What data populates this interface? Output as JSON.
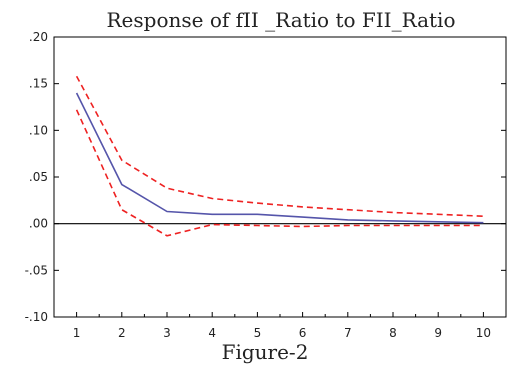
{
  "chart_data": {
    "type": "line",
    "title": "Response of fII _Ratio to FII_Ratio",
    "caption": "Figure-2",
    "xlabel": "",
    "ylabel": "",
    "x": [
      1,
      2,
      3,
      4,
      5,
      6,
      7,
      8,
      9,
      10
    ],
    "x_tick_labels": [
      "1",
      "2",
      "3",
      "4",
      "5",
      "6",
      "7",
      "8",
      "9",
      "10"
    ],
    "ylim": [
      -0.1,
      0.2
    ],
    "y_ticks": [
      -0.1,
      -0.05,
      0.0,
      0.05,
      0.1,
      0.15,
      0.2
    ],
    "y_tick_labels": [
      "-.10",
      "-.05",
      ".00",
      ".05",
      ".10",
      ".15",
      ".20"
    ],
    "zero_line": true,
    "grid": false,
    "legend": "none",
    "series": [
      {
        "role": "response",
        "color": "#5555aa",
        "style": "solid",
        "values": [
          0.14,
          0.042,
          0.013,
          0.01,
          0.01,
          0.007,
          0.004,
          0.003,
          0.002,
          0.001
        ]
      },
      {
        "role": "upper-band",
        "color": "#ee2222",
        "style": "dashed",
        "values": [
          0.158,
          0.068,
          0.038,
          0.027,
          0.022,
          0.018,
          0.015,
          0.012,
          0.01,
          0.008
        ]
      },
      {
        "role": "lower-band",
        "color": "#ee2222",
        "style": "dashed",
        "values": [
          0.122,
          0.015,
          -0.013,
          -0.001,
          -0.002,
          -0.003,
          -0.002,
          -0.002,
          -0.002,
          -0.002
        ]
      }
    ]
  }
}
